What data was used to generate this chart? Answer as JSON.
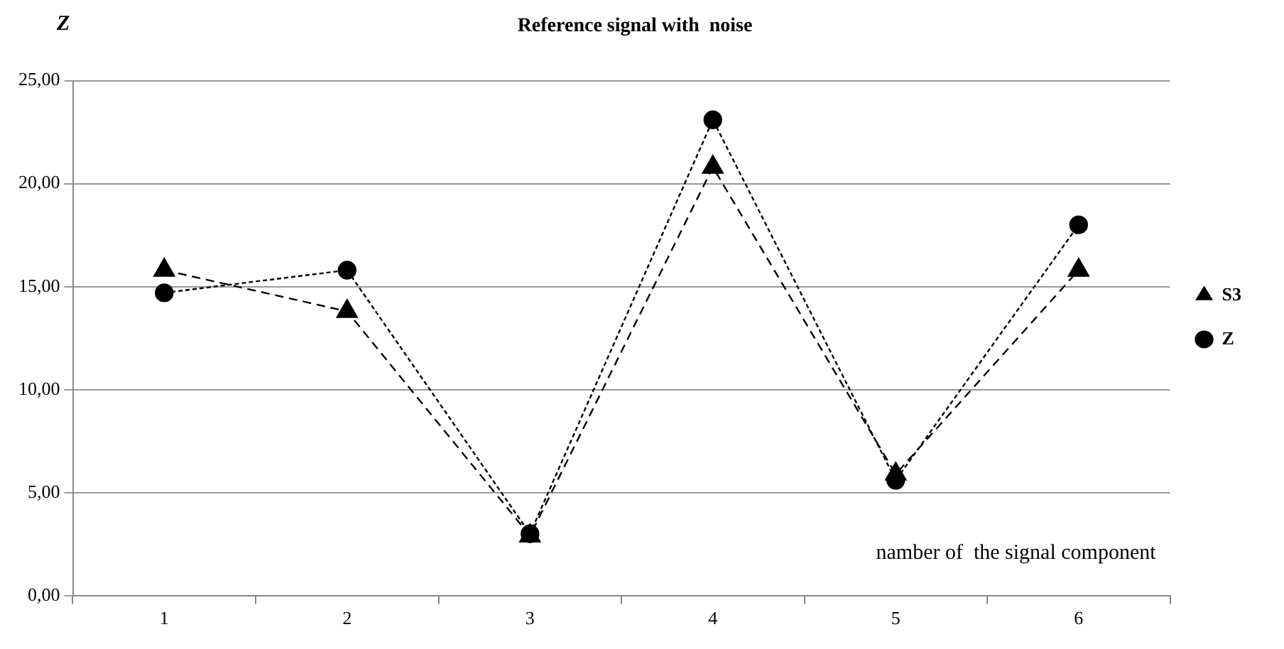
{
  "chart_data": {
    "type": "line",
    "title": "Reference signal with  noise",
    "ylabel": "Z",
    "xlabel": "namber of  the signal component",
    "categories": [
      "1",
      "2",
      "3",
      "4",
      "5",
      "6"
    ],
    "series": [
      {
        "name": "S3",
        "color": "#000000",
        "marker": "triangle",
        "line_style": "dashed",
        "values": [
          15.8,
          13.8,
          2.9,
          20.8,
          5.9,
          15.8
        ]
      },
      {
        "name": "Z",
        "color": "#000000",
        "marker": "circle",
        "line_style": "dotted",
        "values": [
          14.7,
          15.8,
          3.0,
          23.1,
          5.6,
          18.0
        ]
      }
    ],
    "ylim": [
      0,
      25
    ],
    "yticks": [
      {
        "value": 0,
        "label": "0,00"
      },
      {
        "value": 5,
        "label": "5,00"
      },
      {
        "value": 10,
        "label": "10,00"
      },
      {
        "value": 15,
        "label": "15,00"
      },
      {
        "value": 20,
        "label": "20,00"
      },
      {
        "value": 25,
        "label": "25,00"
      }
    ],
    "grid": "y",
    "legend": "right"
  }
}
